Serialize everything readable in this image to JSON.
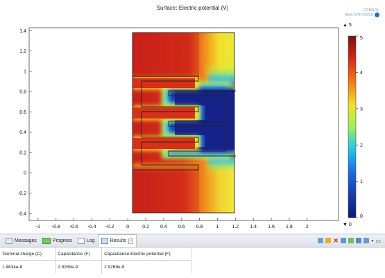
{
  "plot": {
    "title": "Surface: Electric potential (V)",
    "logo_line1": "COMSOL",
    "logo_line2": "MULTIPHYSICS"
  },
  "chart_data": {
    "type": "heatmap",
    "title": "Surface: Electric potential (V)",
    "xlabel": "",
    "ylabel": "",
    "x_ticks": [
      "-1",
      "-0.8",
      "-0.6",
      "-0.4",
      "-0.2",
      "0",
      "0.2",
      "0.4",
      "0.6",
      "0.8",
      "1",
      "1.2",
      "1.4",
      "1.6",
      "1.8",
      "2"
    ],
    "y_ticks": [
      "1.4",
      "1.2",
      "1",
      "0.8",
      "0.6",
      "0.4",
      "0.2",
      "0",
      "-0.2",
      "-0.4"
    ],
    "xlim": [
      -1.1,
      2.35
    ],
    "ylim": [
      -0.47,
      1.43
    ],
    "domain_x": [
      0,
      1.1
    ],
    "domain_y": [
      -0.45,
      1.4
    ],
    "colorbar": {
      "max_label": "▲ 5",
      "min_label": "▼ 0",
      "ticks": [
        "5",
        "4",
        "3",
        "2",
        "1",
        "0"
      ],
      "range": [
        0,
        5
      ],
      "colors": [
        "#0a1a7a",
        "#1a5ad8",
        "#22c8e8",
        "#9ef05a",
        "#f4e02a",
        "#f07a18",
        "#d02818",
        "#7a1010"
      ]
    }
  },
  "tabs": [
    {
      "label": "Messages"
    },
    {
      "label": "Progress"
    },
    {
      "label": "Log"
    },
    {
      "label": "Results"
    }
  ],
  "results": {
    "headers": [
      "Terminal charge (C)",
      "Capacitance (F)",
      "Capacitance Electric potential (F)"
    ],
    "rows": [
      [
        "1.4634e-8",
        "2.9269e-9",
        "2.9269e-9"
      ]
    ]
  }
}
